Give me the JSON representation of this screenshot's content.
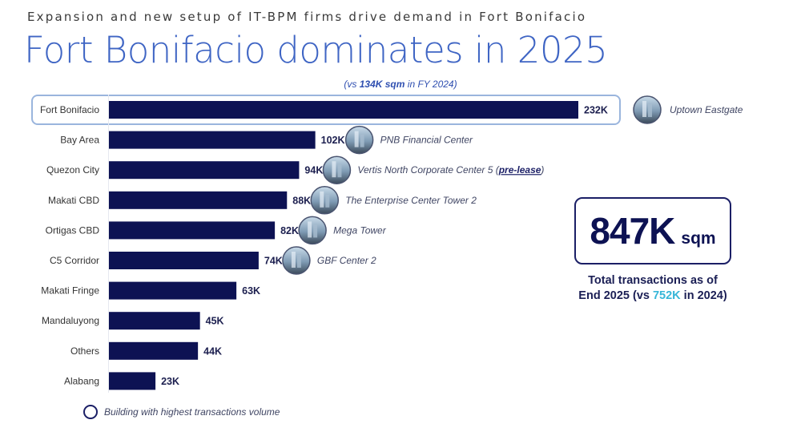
{
  "header": {
    "subtitle": "Expansion and new setup of IT-BPM firms drive demand in Fort Bonifacio",
    "title": "Fort Bonifacio dominates in 2025",
    "compare_prefix": "(vs ",
    "compare_value": "134K sqm",
    "compare_suffix": " in FY 2024)"
  },
  "kpi": {
    "value": "847K",
    "unit": "sqm",
    "caption_line1": "Total transactions as of",
    "caption_line2_prefix": "End 2025 (vs ",
    "caption_line2_accent": "752K",
    "caption_line2_suffix": " in 2024)",
    "accent_color": "#36b6d8"
  },
  "legend": {
    "text": "Building with highest transactions volume"
  },
  "colors": {
    "bar": "#0d1253",
    "highlight_border": "#9ab5dd",
    "title": "#3f65c4"
  },
  "chart_data": {
    "type": "bar",
    "orientation": "horizontal",
    "title": "Fort Bonifacio dominates in 2025",
    "xlabel": "",
    "ylabel": "",
    "unit": "K sqm",
    "xlim": [
      0,
      232
    ],
    "grid": false,
    "highlighted_category": "Fort Bonifacio",
    "categories": [
      "Fort Bonifacio",
      "Bay Area",
      "Quezon City",
      "Makati CBD",
      "Ortigas CBD",
      "C5 Corridor",
      "Makati Fringe",
      "Mandaluyong",
      "Others",
      "Alabang"
    ],
    "values": [
      232,
      102,
      94,
      88,
      82,
      74,
      63,
      45,
      44,
      23
    ],
    "value_labels": [
      "232K",
      "102K",
      "94K",
      "88K",
      "82K",
      "74K",
      "63K",
      "45K",
      "44K",
      "23K"
    ],
    "buildings": [
      {
        "name": "Uptown Eastgate",
        "note": ""
      },
      {
        "name": "PNB Financial Center",
        "note": ""
      },
      {
        "name": "Vertis North Corporate Center 5 (",
        "note": "pre-lease",
        "close": ")"
      },
      {
        "name": "The Enterprise Center Tower 2",
        "note": ""
      },
      {
        "name": "Mega Tower",
        "note": ""
      },
      {
        "name": "GBF Center 2",
        "note": ""
      },
      null,
      null,
      null,
      null
    ]
  }
}
